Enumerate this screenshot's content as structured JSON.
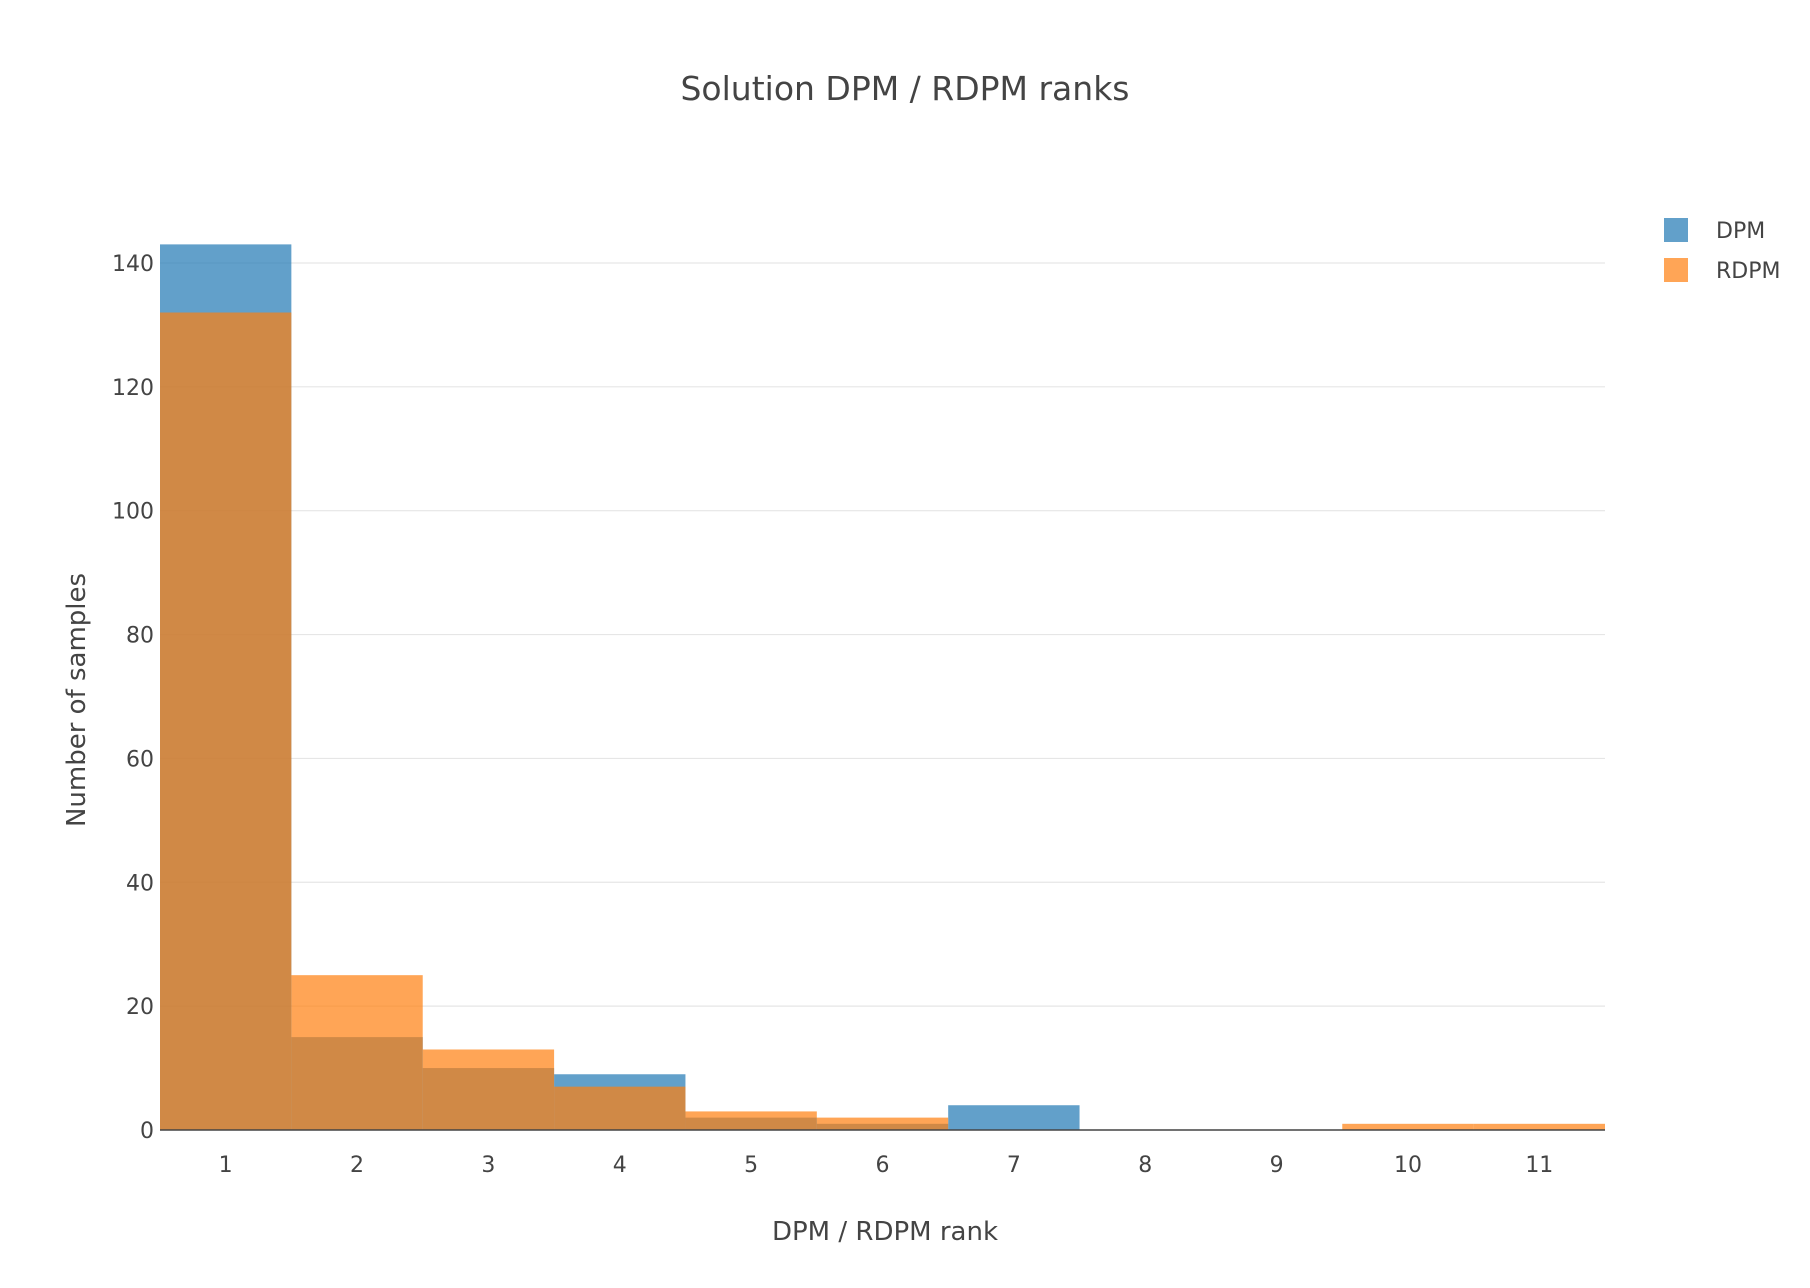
{
  "colors": {
    "DPM": "#1f77b4",
    "RDPM": "#ff7f0e",
    "grid": "#e6e6e6",
    "text": "#444444"
  },
  "chart_data": {
    "type": "bar",
    "mode": "overlay",
    "title": "Solution DPM / RDPM ranks",
    "xlabel": "DPM / RDPM rank",
    "ylabel": "Number of samples",
    "categories": [
      "1",
      "2",
      "3",
      "4",
      "5",
      "6",
      "7",
      "8",
      "9",
      "10",
      "11"
    ],
    "x": [
      1,
      2,
      3,
      4,
      5,
      6,
      7,
      8,
      9,
      10,
      11
    ],
    "xlim": [
      0.5,
      11.5
    ],
    "ylim": [
      0,
      145
    ],
    "yticks": [
      0,
      20,
      40,
      60,
      80,
      100,
      120,
      140
    ],
    "grid": true,
    "legend_position": "top-right",
    "series": [
      {
        "name": "DPM",
        "color_key": "DPM",
        "values": [
          143,
          15,
          10,
          9,
          2,
          1,
          4,
          0,
          0,
          0,
          0
        ]
      },
      {
        "name": "RDPM",
        "color_key": "RDPM",
        "values": [
          132,
          25,
          13,
          7,
          3,
          2,
          0,
          0,
          0,
          1,
          1
        ]
      }
    ]
  }
}
